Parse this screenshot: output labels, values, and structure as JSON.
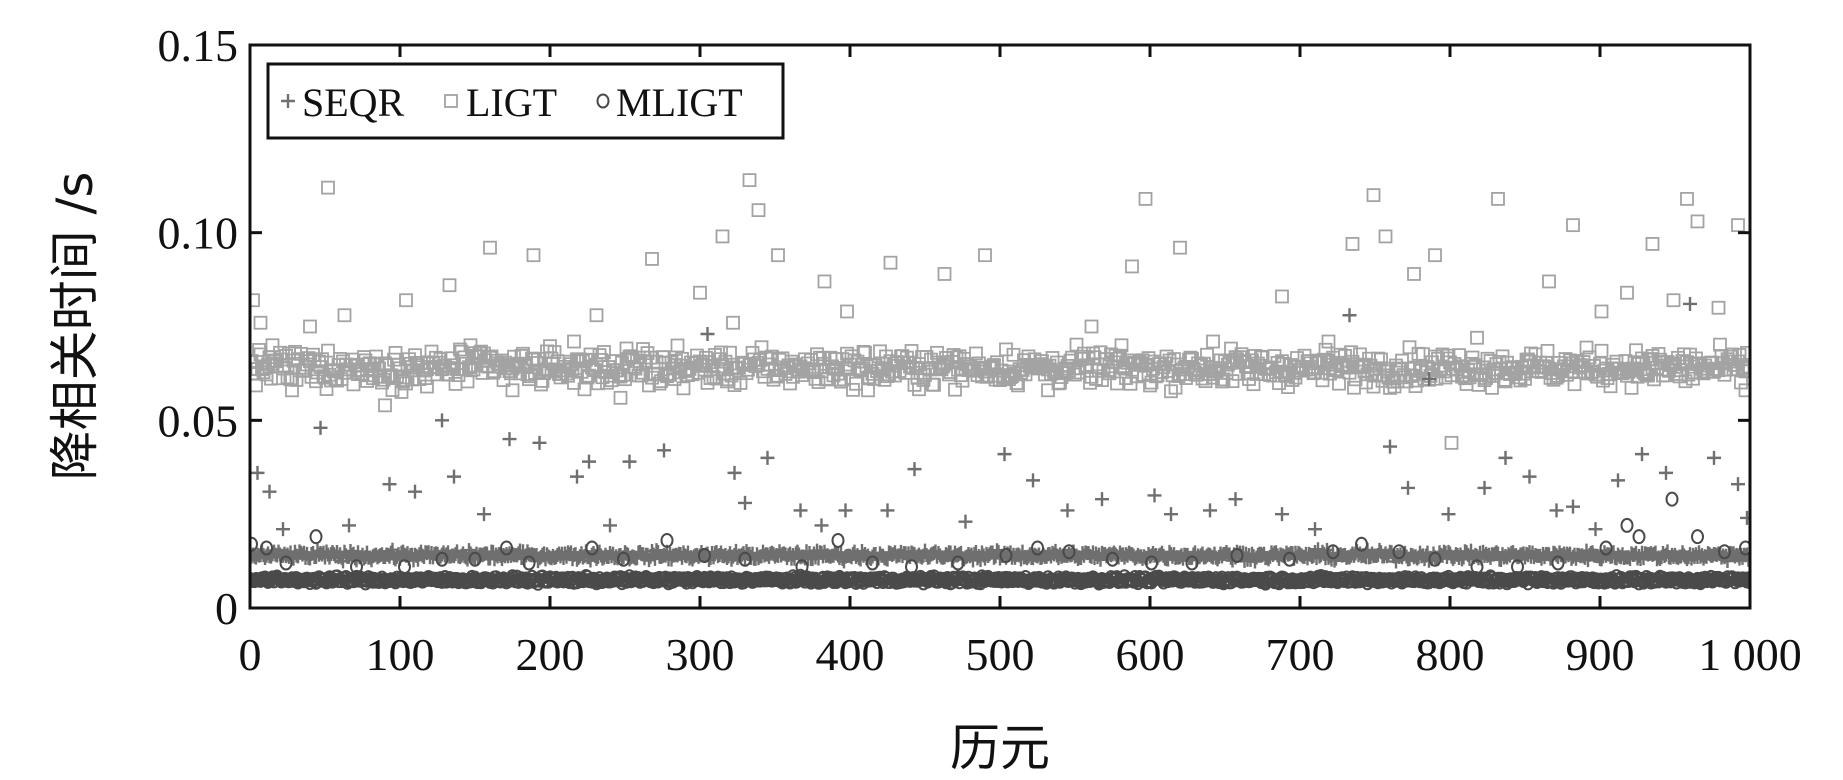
{
  "chart_data": {
    "type": "scatter",
    "xlabel": "历元",
    "ylabel": "降相关时间 /s",
    "xlim": [
      0,
      1000
    ],
    "ylim": [
      0,
      0.15
    ],
    "x_ticks": [
      {
        "value": 0,
        "label": "0"
      },
      {
        "value": 100,
        "label": "100"
      },
      {
        "value": 200,
        "label": "200"
      },
      {
        "value": 300,
        "label": "300"
      },
      {
        "value": 400,
        "label": "400"
      },
      {
        "value": 500,
        "label": "500"
      },
      {
        "value": 600,
        "label": "600"
      },
      {
        "value": 700,
        "label": "700"
      },
      {
        "value": 800,
        "label": "800"
      },
      {
        "value": 900,
        "label": "900"
      },
      {
        "value": 1000,
        "label": "1 000"
      }
    ],
    "y_ticks": [
      {
        "value": 0,
        "label": "0"
      },
      {
        "value": 0.05,
        "label": "0.05"
      },
      {
        "value": 0.1,
        "label": "0.10"
      },
      {
        "value": 0.15,
        "label": "0.15"
      }
    ],
    "legend_position": "top-left",
    "grid": false,
    "series": [
      {
        "name": "SEQR",
        "marker": "plus",
        "color": "#6f6f6f",
        "typical_value": 0.014,
        "x": [
          5,
          13,
          22,
          47,
          66,
          93,
          110,
          128,
          136,
          156,
          173,
          193,
          218,
          226,
          240,
          253,
          276,
          305,
          323,
          330,
          345,
          367,
          381,
          397,
          425,
          443,
          477,
          503,
          522,
          545,
          568,
          603,
          614,
          640,
          657,
          688,
          710,
          733,
          760,
          772,
          786,
          799,
          823,
          837,
          853,
          871,
          882,
          897,
          912,
          928,
          944,
          960,
          976,
          992,
          998
        ],
        "y": [
          0.036,
          0.031,
          0.021,
          0.048,
          0.022,
          0.033,
          0.031,
          0.05,
          0.035,
          0.025,
          0.045,
          0.044,
          0.035,
          0.039,
          0.022,
          0.039,
          0.042,
          0.073,
          0.036,
          0.028,
          0.04,
          0.026,
          0.022,
          0.026,
          0.026,
          0.037,
          0.023,
          0.041,
          0.034,
          0.026,
          0.029,
          0.03,
          0.025,
          0.026,
          0.029,
          0.025,
          0.021,
          0.078,
          0.043,
          0.032,
          0.061,
          0.025,
          0.032,
          0.04,
          0.035,
          0.026,
          0.027,
          0.021,
          0.034,
          0.041,
          0.036,
          0.081,
          0.04,
          0.033,
          0.024
        ]
      },
      {
        "name": "LIGT",
        "marker": "square",
        "color": "#a3a3a3",
        "typical_value": 0.064,
        "x": [
          2,
          7,
          15,
          28,
          40,
          52,
          63,
          78,
          90,
          104,
          118,
          133,
          147,
          153,
          160,
          175,
          189,
          203,
          216,
          231,
          247,
          262,
          268,
          283,
          300,
          315,
          322,
          333,
          339,
          352,
          365,
          383,
          398,
          412,
          427,
          446,
          463,
          490,
          506,
          532,
          561,
          588,
          597,
          620,
          642,
          666,
          688,
          719,
          735,
          743,
          749,
          757,
          776,
          790,
          801,
          818,
          832,
          848,
          866,
          882,
          901,
          918,
          935,
          949,
          958,
          965,
          979,
          992,
          997
        ],
        "y": [
          0.082,
          0.076,
          0.07,
          0.058,
          0.075,
          0.112,
          0.078,
          0.062,
          0.054,
          0.082,
          0.059,
          0.086,
          0.07,
          0.068,
          0.096,
          0.058,
          0.094,
          0.063,
          0.071,
          0.078,
          0.056,
          0.069,
          0.093,
          0.061,
          0.084,
          0.099,
          0.076,
          0.114,
          0.106,
          0.094,
          0.063,
          0.087,
          0.079,
          0.058,
          0.092,
          0.065,
          0.089,
          0.094,
          0.061,
          0.058,
          0.075,
          0.091,
          0.109,
          0.096,
          0.071,
          0.061,
          0.083,
          0.071,
          0.097,
          0.063,
          0.11,
          0.099,
          0.089,
          0.094,
          0.044,
          0.072,
          0.109,
          0.064,
          0.087,
          0.102,
          0.079,
          0.084,
          0.097,
          0.082,
          0.109,
          0.103,
          0.08,
          0.102,
          0.058
        ]
      },
      {
        "name": "MLIGT",
        "marker": "circle",
        "color": "#4a4a4a",
        "typical_value": 0.0075,
        "x": [
          1,
          11,
          24,
          44,
          71,
          103,
          128,
          150,
          171,
          186,
          228,
          249,
          278,
          303,
          330,
          368,
          392,
          415,
          441,
          472,
          504,
          525,
          546,
          575,
          601,
          628,
          658,
          693,
          722,
          741,
          766,
          790,
          818,
          845,
          872,
          904,
          918,
          926,
          948,
          965,
          983,
          997
        ],
        "y": [
          0.017,
          0.016,
          0.012,
          0.019,
          0.011,
          0.011,
          0.013,
          0.013,
          0.016,
          0.012,
          0.016,
          0.013,
          0.018,
          0.014,
          0.013,
          0.011,
          0.018,
          0.012,
          0.011,
          0.012,
          0.014,
          0.016,
          0.015,
          0.013,
          0.012,
          0.012,
          0.014,
          0.013,
          0.015,
          0.017,
          0.015,
          0.013,
          0.011,
          0.011,
          0.012,
          0.016,
          0.022,
          0.019,
          0.029,
          0.019,
          0.015,
          0.016
        ]
      }
    ]
  }
}
